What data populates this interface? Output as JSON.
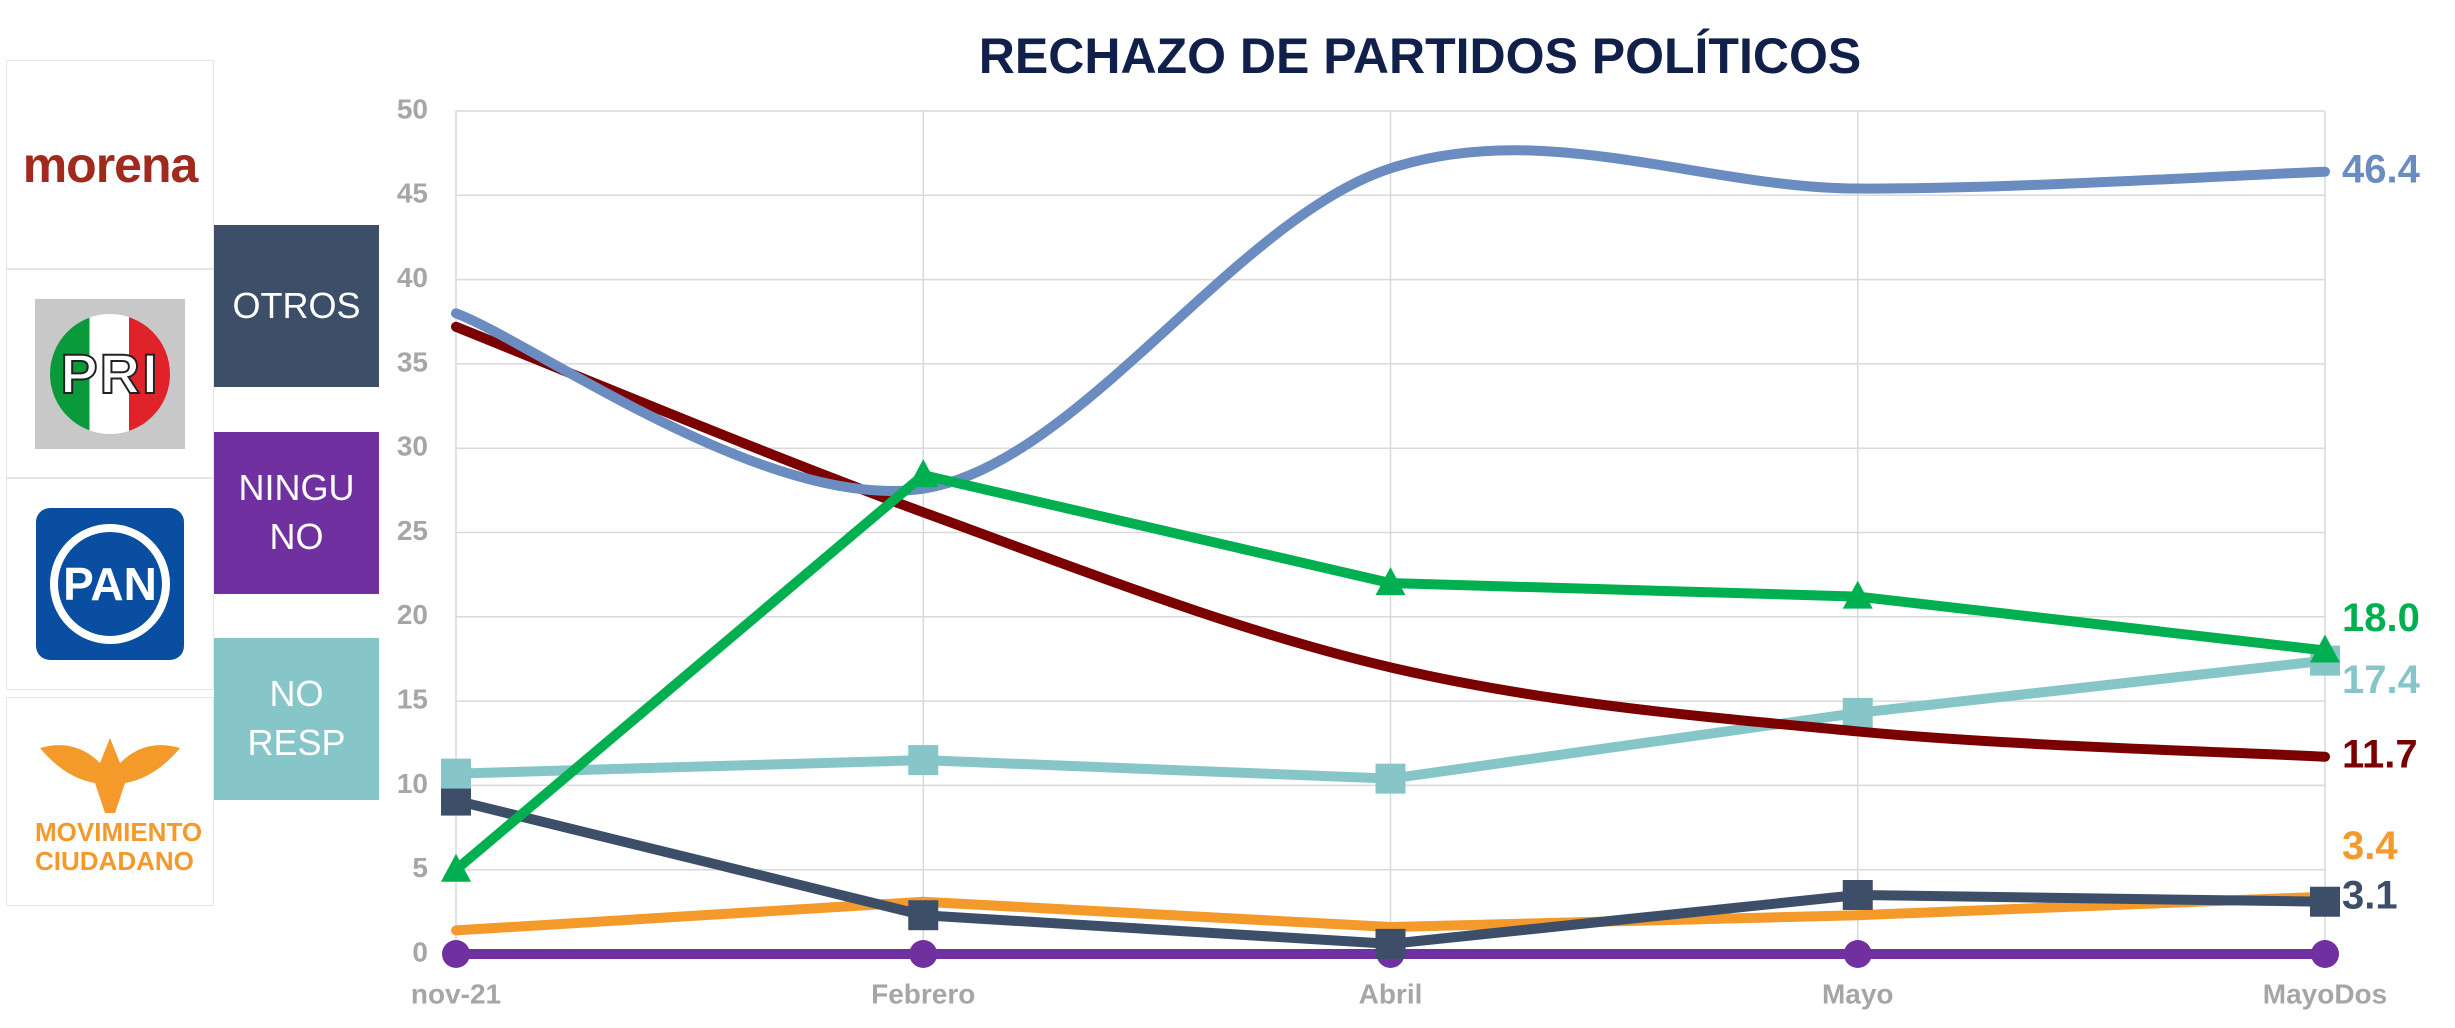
{
  "chart_data": {
    "type": "line",
    "title": "RECHAZO DE PARTIDOS POLÍTICOS",
    "categories": [
      "nov-21",
      "Febrero",
      "Abril",
      "Mayo",
      "MayoDos"
    ],
    "ylim": [
      0,
      50
    ],
    "yticks": [
      0,
      5,
      10,
      15,
      20,
      25,
      30,
      35,
      40,
      45,
      50
    ],
    "grid": true,
    "series": [
      {
        "name": "morena",
        "color": "#7b0000",
        "values": [
          37.2,
          26.2,
          17.0,
          13.2,
          11.7
        ],
        "marker": "none",
        "smooth": true,
        "end_label": true
      },
      {
        "name": "PRI",
        "color": "#00b050",
        "values": [
          5.0,
          28.4,
          22.0,
          21.2,
          18.0
        ],
        "value_labels": [
          null,
          null,
          null,
          null,
          "18.0"
        ],
        "marker": "triangle",
        "smooth": false,
        "end_label": true
      },
      {
        "name": "PAN",
        "color": "#6b8cc0",
        "values": [
          38.0,
          27.6,
          46.6,
          45.4,
          46.4
        ],
        "marker": "none",
        "smooth": true,
        "end_label": true
      },
      {
        "name": "MOVIMIENTO CIUDADANO",
        "color": "#f39a2b",
        "values": [
          1.4,
          3.1,
          1.6,
          2.3,
          3.4
        ],
        "marker": "none",
        "smooth": false,
        "end_label": true
      },
      {
        "name": "OTROS",
        "color": "#3d4e68",
        "values": [
          9.1,
          2.3,
          0.6,
          3.5,
          3.1
        ],
        "marker": "square",
        "smooth": false,
        "end_label": true
      },
      {
        "name": "NINGUNO",
        "color": "#7030a0",
        "values": [
          0,
          0,
          0,
          0,
          0
        ],
        "marker": "circle",
        "smooth": false,
        "end_label": false
      },
      {
        "name": "NO RESP",
        "color": "#86c5c8",
        "values": [
          10.7,
          11.5,
          10.4,
          14.3,
          17.4
        ],
        "marker": "square",
        "smooth": false,
        "end_label": true
      }
    ]
  }
}
